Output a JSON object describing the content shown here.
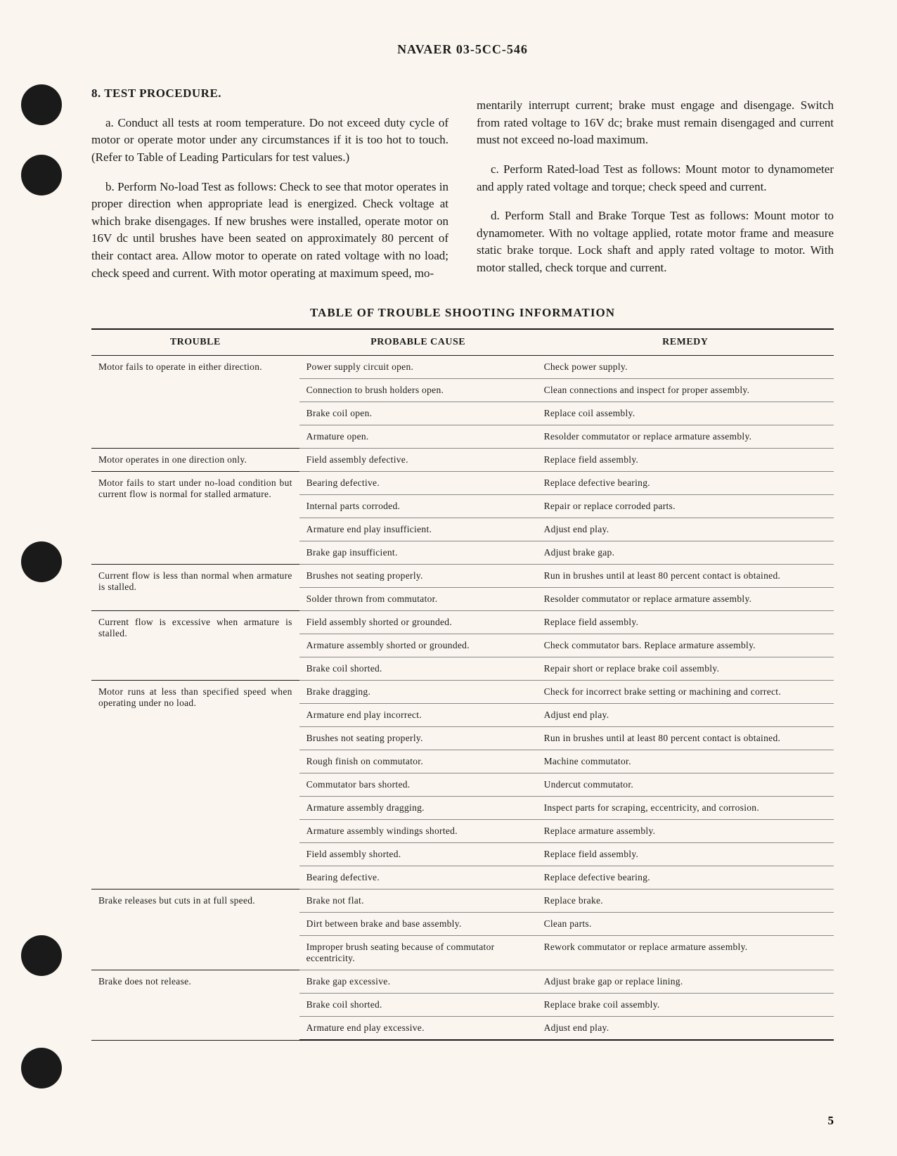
{
  "header": "NAVAER 03-5CC-546",
  "section": {
    "number": "8.",
    "title": "TEST PROCEDURE."
  },
  "paragraphs": {
    "a": "a. Conduct all tests at room temperature. Do not exceed duty cycle of motor or operate motor under any circumstances if it is too hot to touch. (Refer to Table of Leading Particulars for test values.)",
    "b_part1": "b. Perform No-load Test as follows: Check to see that motor operates in proper direction when appropriate lead is energized. Check voltage at which brake disengages. If new brushes were installed, operate motor on 16V dc until brushes have been seated on approximately 80 percent of their contact area. Allow motor to operate on rated voltage with no load; check speed and current. With motor operating at maximum speed, mo-",
    "b_part2": "mentarily interrupt current; brake must engage and disengage. Switch from rated voltage to 16V dc; brake must remain disengaged and current must not exceed no-load maximum.",
    "c": "c. Perform Rated-load Test as follows: Mount motor to dynamometer and apply rated voltage and torque; check speed and current.",
    "d": "d. Perform Stall and Brake Torque Test as follows: Mount motor to dynamometer. With no voltage applied, rotate motor frame and measure static brake torque. Lock shaft and apply rated voltage to motor. With motor stalled, check torque and current."
  },
  "table": {
    "title": "TABLE OF TROUBLE SHOOTING INFORMATION",
    "headers": {
      "trouble": "TROUBLE",
      "cause": "PROBABLE CAUSE",
      "remedy": "REMEDY"
    },
    "groups": [
      {
        "trouble": "Motor fails to operate in either direction.",
        "rows": [
          {
            "cause": "Power supply circuit open.",
            "remedy": "Check power supply."
          },
          {
            "cause": "Connection to brush holders open.",
            "remedy": "Clean connections and inspect for proper assembly."
          },
          {
            "cause": "Brake coil open.",
            "remedy": "Replace coil assembly."
          },
          {
            "cause": "Armature open.",
            "remedy": "Resolder commutator or replace armature assembly."
          }
        ]
      },
      {
        "trouble": "Motor operates in one direction only.",
        "rows": [
          {
            "cause": "Field assembly defective.",
            "remedy": "Replace field assembly."
          }
        ]
      },
      {
        "trouble": "Motor fails to start under no-load condition but current flow is normal for stalled armature.",
        "rows": [
          {
            "cause": "Bearing defective.",
            "remedy": "Replace defective bearing."
          },
          {
            "cause": "Internal parts corroded.",
            "remedy": "Repair or replace corroded parts."
          },
          {
            "cause": "Armature end play insufficient.",
            "remedy": "Adjust end play."
          },
          {
            "cause": "Brake gap insufficient.",
            "remedy": "Adjust brake gap."
          }
        ]
      },
      {
        "trouble": "Current flow is less than normal when armature is stalled.",
        "rows": [
          {
            "cause": "Brushes not seating properly.",
            "remedy": "Run in brushes until at least 80 percent contact is obtained."
          },
          {
            "cause": "Solder thrown from commutator.",
            "remedy": "Resolder commutator or replace armature assembly."
          }
        ]
      },
      {
        "trouble": "Current flow is excessive when armature is stalled.",
        "rows": [
          {
            "cause": "Field assembly shorted or grounded.",
            "remedy": "Replace field assembly."
          },
          {
            "cause": "Armature assembly shorted or grounded.",
            "remedy": "Check commutator bars. Replace armature assembly."
          },
          {
            "cause": "Brake coil shorted.",
            "remedy": "Repair short or replace brake coil assembly."
          }
        ]
      },
      {
        "trouble": "Motor runs at less than specified speed when operating under no load.",
        "rows": [
          {
            "cause": "Brake dragging.",
            "remedy": "Check for incorrect brake setting or machining and correct."
          },
          {
            "cause": "Armature end play incorrect.",
            "remedy": "Adjust end play."
          },
          {
            "cause": "Brushes not seating properly.",
            "remedy": "Run in brushes until at least 80 percent contact is obtained."
          },
          {
            "cause": "Rough finish on commutator.",
            "remedy": "Machine commutator."
          },
          {
            "cause": "Commutator bars shorted.",
            "remedy": "Undercut commutator."
          },
          {
            "cause": "Armature assembly dragging.",
            "remedy": "Inspect parts for scraping, eccentricity, and corrosion."
          },
          {
            "cause": "Armature assembly windings shorted.",
            "remedy": "Replace armature assembly."
          },
          {
            "cause": "Field assembly shorted.",
            "remedy": "Replace field assembly."
          },
          {
            "cause": "Bearing defective.",
            "remedy": "Replace defective bearing."
          }
        ]
      },
      {
        "trouble": "Brake releases but cuts in at full speed.",
        "rows": [
          {
            "cause": "Brake not flat.",
            "remedy": "Replace brake."
          },
          {
            "cause": "Dirt between brake and base assembly.",
            "remedy": "Clean parts."
          },
          {
            "cause": "Improper brush seating because of commutator eccentricity.",
            "remedy": "Rework commutator or replace armature assembly."
          }
        ]
      },
      {
        "trouble": "Brake does not release.",
        "rows": [
          {
            "cause": "Brake gap excessive.",
            "remedy": "Adjust brake gap or replace lining."
          },
          {
            "cause": "Brake coil shorted.",
            "remedy": "Replace brake coil assembly."
          },
          {
            "cause": "Armature end play excessive.",
            "remedy": "Adjust end play."
          }
        ]
      }
    ]
  },
  "page_number": "5",
  "style": {
    "hole_positions": [
      120,
      220,
      770,
      1330,
      1490
    ],
    "colors": {
      "background": "#faf6ef",
      "text": "#1a1a1a",
      "hole": "#1a1a1a",
      "rule_light": "#888"
    }
  }
}
